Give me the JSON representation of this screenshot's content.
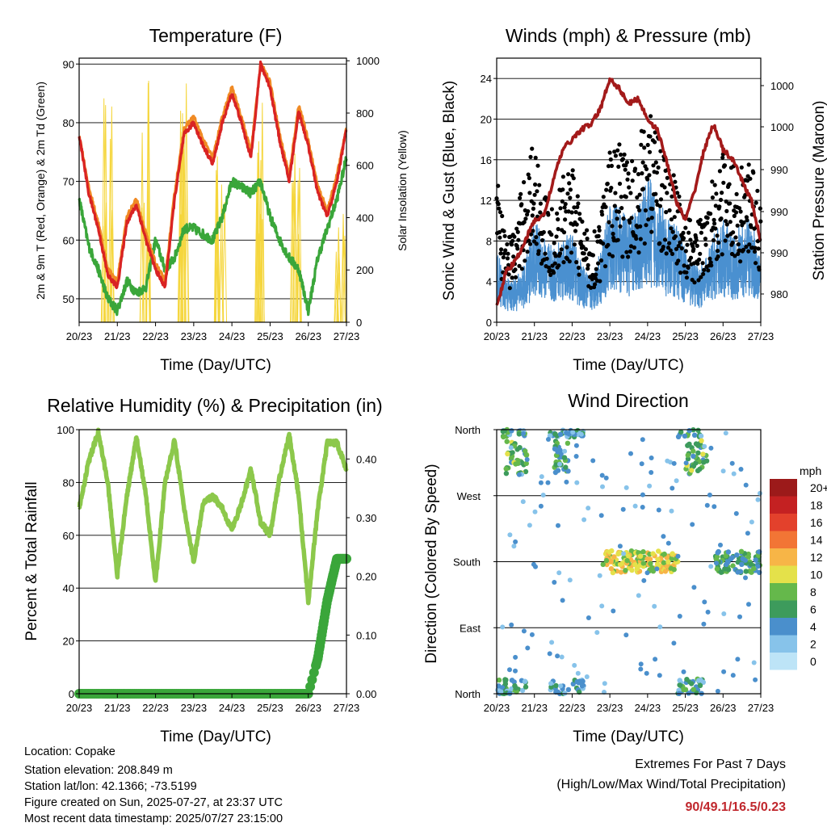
{
  "x_ticks": [
    "20/23",
    "21/23",
    "22/23",
    "23/23",
    "24/23",
    "25/23",
    "26/23",
    "27/23"
  ],
  "colors": {
    "t2m": "#d92323",
    "t9m": "#f08a24",
    "td": "#3aa63a",
    "solar": "#f5d63d",
    "wind": "#4a90d0",
    "gust": "#000000",
    "pressure": "#a31a1a",
    "rh": "#8cc84b",
    "precip": "#3aa63a"
  },
  "chart_data": [
    {
      "type": "line",
      "title": "Temperature (F)",
      "xlabel": "Time (Day/UTC)",
      "ylabel": "2m & 9m T (Red, Orange) & 2m Td (Green)",
      "y2label": "Solar Insolation (Yellow)",
      "ylim": [
        46,
        91
      ],
      "y_ticks": [
        "50",
        "60",
        "70",
        "80",
        "90"
      ],
      "y2lim": [
        0,
        1010
      ],
      "y2_ticks": [
        "0",
        "200",
        "400",
        "600",
        "800",
        "1000"
      ],
      "x": [
        0,
        0.25,
        0.5,
        0.75,
        1,
        1.25,
        1.5,
        1.75,
        2,
        2.25,
        2.5,
        2.75,
        3,
        3.25,
        3.5,
        3.75,
        4,
        4.25,
        4.5,
        4.75,
        5,
        5.25,
        5.5,
        5.75,
        6,
        6.25,
        6.5,
        6.75,
        7
      ],
      "series": [
        {
          "name": "2m T",
          "values": [
            78,
            68,
            62,
            54,
            52,
            63,
            66,
            60,
            55,
            52,
            67,
            78,
            80,
            76,
            73,
            80,
            85,
            80,
            74,
            90,
            86,
            77,
            70,
            82,
            76,
            68,
            64,
            70,
            79
          ]
        },
        {
          "name": "9m T",
          "values": [
            78,
            69,
            63,
            55,
            53,
            64,
            67,
            61,
            56,
            53,
            68,
            79,
            81,
            77,
            74,
            81,
            86,
            81,
            75,
            90,
            87,
            78,
            71,
            83,
            77,
            69,
            65,
            71,
            79
          ]
        },
        {
          "name": "2m Td",
          "values": [
            67,
            59,
            55,
            50,
            48,
            53,
            51,
            52,
            60,
            55,
            57,
            62,
            62,
            61,
            60,
            64,
            70,
            69,
            68,
            70,
            64,
            60,
            57,
            55,
            48,
            57,
            62,
            67,
            74
          ]
        }
      ],
      "solar_peaks": [
        {
          "day": 0.75,
          "value": 960
        },
        {
          "day": 1.7,
          "value": 955
        },
        {
          "day": 2.7,
          "value": 985
        },
        {
          "day": 3.7,
          "value": 810
        },
        {
          "day": 4.7,
          "value": 850
        },
        {
          "day": 5.7,
          "value": 840
        },
        {
          "day": 6.85,
          "value": 420
        }
      ]
    },
    {
      "type": "scatter",
      "title": "Winds (mph) & Pressure (mb)",
      "xlabel": "Time (Day/UTC)",
      "ylabel": "Sonic Wind & Gust (Blue, Black)",
      "y2label": "Station Pressure (Maroon)",
      "ylim": [
        0,
        26
      ],
      "y_ticks": [
        "0",
        "4",
        "8",
        "12",
        "16",
        "20",
        "24"
      ],
      "y2_ticks": [
        "980",
        "990",
        "990",
        "990",
        "1000",
        "1000"
      ],
      "x": [
        0,
        0.25,
        0.5,
        0.75,
        1,
        1.25,
        1.5,
        1.75,
        2,
        2.25,
        2.5,
        2.75,
        3,
        3.25,
        3.5,
        3.75,
        4,
        4.25,
        4.5,
        4.75,
        5,
        5.25,
        5.5,
        5.75,
        6,
        6.25,
        6.5,
        6.75,
        7
      ],
      "series": [
        {
          "name": "Wind",
          "values": [
            5,
            3,
            3,
            4,
            7,
            6,
            5,
            6,
            6,
            4,
            3,
            5,
            8,
            8,
            7,
            8,
            10,
            9,
            7,
            7,
            5,
            4,
            4,
            6,
            7,
            6,
            7,
            7,
            5
          ]
        },
        {
          "name": "Gust",
          "values": [
            12,
            7,
            8,
            13,
            15,
            11,
            9,
            12,
            13,
            9,
            7,
            9,
            14,
            15,
            13,
            15,
            18,
            17,
            13,
            12,
            9,
            8,
            9,
            13,
            14,
            13,
            13,
            13,
            10
          ]
        },
        {
          "name": "Station Pressure",
          "values": [
            1.5,
            5,
            6,
            8,
            10,
            10.5,
            14,
            17,
            18,
            19,
            19.5,
            21,
            24,
            23,
            21.5,
            22,
            20,
            19,
            16,
            12,
            10,
            13,
            17,
            19.5,
            17,
            16,
            14,
            12,
            8
          ]
        }
      ]
    },
    {
      "type": "line",
      "title": "Relative Humidity (%) & Precipitation (in)",
      "xlabel": "Time (Day/UTC)",
      "ylabel": "Percent & Total Rainfall",
      "ylim": [
        0,
        100
      ],
      "y_ticks": [
        "0",
        "20",
        "40",
        "60",
        "80",
        "100"
      ],
      "y2lim": [
        0,
        0.45
      ],
      "y2_ticks": [
        "0.00",
        "0.10",
        "0.20",
        "0.30",
        "0.40"
      ],
      "x": [
        0,
        0.25,
        0.5,
        0.75,
        1,
        1.25,
        1.5,
        1.75,
        2,
        2.25,
        2.5,
        2.75,
        3,
        3.25,
        3.5,
        3.75,
        4,
        4.25,
        4.5,
        4.75,
        5,
        5.25,
        5.5,
        5.75,
        6,
        6.25,
        6.5,
        6.75,
        7
      ],
      "series": [
        {
          "name": "Relative Humidity",
          "values": [
            70,
            88,
            99,
            80,
            45,
            75,
            97,
            75,
            42,
            80,
            96,
            70,
            50,
            72,
            75,
            70,
            62,
            72,
            85,
            65,
            60,
            82,
            98,
            75,
            35,
            70,
            95,
            95,
            85
          ]
        },
        {
          "name": "Total Precipitation",
          "values": [
            0,
            0,
            0,
            0,
            0,
            0,
            0,
            0,
            0,
            0,
            0,
            0,
            0,
            0,
            0,
            0,
            0,
            0,
            0,
            0,
            0,
            0,
            0,
            0,
            0,
            0.06,
            0.16,
            0.23,
            0.23
          ]
        }
      ]
    },
    {
      "type": "scatter",
      "title": "Wind Direction",
      "xlabel": "Time (Day/UTC)",
      "ylabel": "Direction (Colored By Speed)",
      "y_ticks": [
        "North",
        "East",
        "South",
        "West",
        "North"
      ],
      "legend_title": "mph",
      "legend_labels": [
        "0",
        "2",
        "4",
        "6",
        "8",
        "10",
        "12",
        "14",
        "16",
        "18",
        "20+"
      ],
      "legend_colors": [
        "#bde4f7",
        "#87c3ea",
        "#4a8fcc",
        "#3d9b5c",
        "#65b84b",
        "#e4e14a",
        "#f7b547",
        "#f27535",
        "#e3412c",
        "#c42122",
        "#9c1a1a"
      ],
      "bands": [
        {
          "from": 0,
          "to": 0.8,
          "dir": "N",
          "speed": 5
        },
        {
          "from": 0.2,
          "to": 0.8,
          "dir": "NW",
          "speed": 7
        },
        {
          "from": 1.4,
          "to": 2.3,
          "dir": "N",
          "speed": 4
        },
        {
          "from": 1.5,
          "to": 1.9,
          "dir": "NW",
          "speed": 6
        },
        {
          "from": 2.8,
          "to": 4.8,
          "dir": "S",
          "speed": 10
        },
        {
          "from": 4.8,
          "to": 5.5,
          "dir": "N",
          "speed": 5
        },
        {
          "from": 5.0,
          "to": 5.6,
          "dir": "NW",
          "speed": 7
        },
        {
          "from": 5.8,
          "to": 7.0,
          "dir": "S",
          "speed": 6
        }
      ]
    }
  ],
  "info": {
    "location": "Location: Copake",
    "elevation": "Station elevation: 208.849 m",
    "latlon": "Station lat/lon: 42.1366; -73.5199",
    "created": "Figure created on Sun, 2025-07-27, at 23:37 UTC",
    "timestamp": "Most recent data timestamp: 2025/07/27 23:15:00"
  },
  "extremes": {
    "line1": "Extremes For Past 7 Days",
    "line2": "(High/Low/Max Wind/Total Precipitation)",
    "values": "90/49.1/16.5/0.23"
  }
}
